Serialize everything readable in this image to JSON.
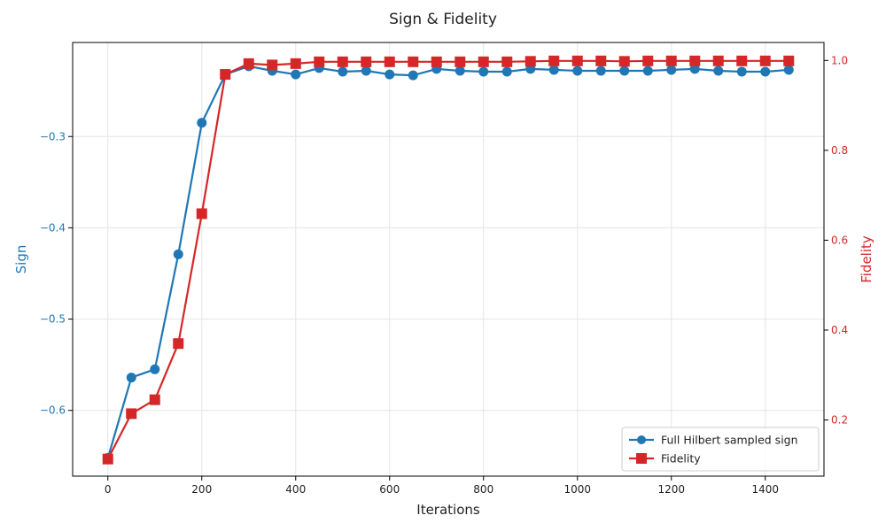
{
  "chart_data": {
    "type": "line",
    "title": "Sign & Fidelity",
    "xlabel": "Iterations",
    "ylabel_left": "Sign",
    "ylabel_right": "Fidelity",
    "xlim": [
      -75,
      1525
    ],
    "ylim_left": [
      -0.672,
      -0.197
    ],
    "ylim_right": [
      0.075,
      1.04
    ],
    "x_ticks": [
      0,
      200,
      400,
      600,
      800,
      1000,
      1200,
      1400
    ],
    "y_left_ticks": [
      -0.6,
      -0.5,
      -0.4,
      -0.3
    ],
    "y_left_tick_labels": [
      "−0.6",
      "−0.5",
      "−0.4",
      "−0.3"
    ],
    "y_right_ticks": [
      0.2,
      0.4,
      0.6,
      0.8,
      1.0
    ],
    "y_right_tick_labels": [
      "0.2",
      "0.4",
      "0.6",
      "0.8",
      "1.0"
    ],
    "grid": true,
    "legend_position": "bottom-right",
    "colors": {
      "sign": "#1f77b4",
      "fidelity": "#d62728"
    },
    "x": [
      0,
      50,
      100,
      150,
      200,
      250,
      300,
      350,
      400,
      450,
      500,
      550,
      600,
      650,
      700,
      750,
      800,
      850,
      900,
      950,
      1000,
      1050,
      1100,
      1150,
      1200,
      1250,
      1300,
      1350,
      1400,
      1450
    ],
    "series": [
      {
        "name": "Full Hilbert sampled sign",
        "axis": "left",
        "marker": "circle",
        "values": [
          -0.652,
          -0.564,
          -0.555,
          -0.429,
          -0.285,
          -0.232,
          -0.223,
          -0.228,
          -0.232,
          -0.225,
          -0.229,
          -0.228,
          -0.232,
          -0.233,
          -0.226,
          -0.228,
          -0.229,
          -0.229,
          -0.226,
          -0.227,
          -0.228,
          -0.228,
          -0.228,
          -0.228,
          -0.227,
          -0.226,
          -0.228,
          -0.229,
          -0.229,
          -0.227
        ]
      },
      {
        "name": "Fidelity",
        "axis": "right",
        "marker": "square",
        "values": [
          0.113,
          0.214,
          0.245,
          0.37,
          0.659,
          0.969,
          0.993,
          0.99,
          0.993,
          0.997,
          0.997,
          0.997,
          0.997,
          0.997,
          0.997,
          0.997,
          0.997,
          0.997,
          0.998,
          0.999,
          0.999,
          0.999,
          0.998,
          0.999,
          0.999,
          0.999,
          0.999,
          0.999,
          0.999,
          0.999
        ]
      }
    ]
  }
}
